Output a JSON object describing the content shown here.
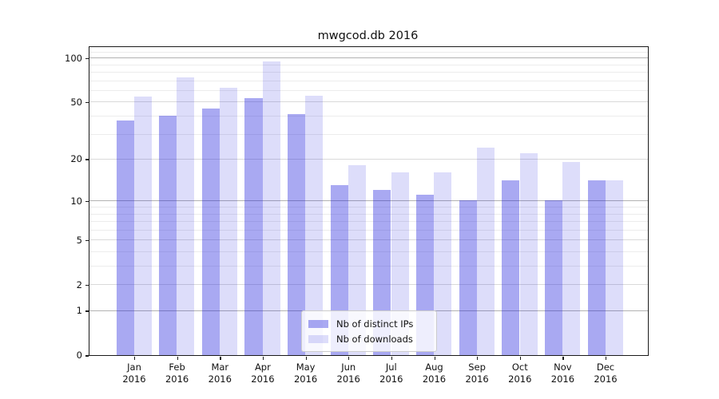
{
  "chart_data": {
    "type": "bar",
    "title": "mwgcod.db 2016",
    "categories": [
      "Jan",
      "Feb",
      "Mar",
      "Apr",
      "May",
      "Jun",
      "Jul",
      "Aug",
      "Sep",
      "Oct",
      "Nov",
      "Dec"
    ],
    "category_year": "2016",
    "series": [
      {
        "name": "Nb of distinct IPs",
        "color": "rgba(28,28,222,0.38)",
        "color_on_white_hex": "#a9a9f3",
        "values": [
          37,
          40,
          45,
          53,
          41,
          13,
          12,
          11,
          10,
          14,
          10,
          14
        ]
      },
      {
        "name": "Nb of downloads",
        "color": "rgba(28,28,222,0.15)",
        "color_on_white_hex": "#dedefa",
        "values": [
          54,
          73,
          62,
          94,
          55,
          18,
          16,
          16,
          24,
          22,
          19,
          14
        ]
      }
    ],
    "xlabel": "",
    "ylabel": "",
    "yscale": "log10(1+x)",
    "y_ticks": [
      0,
      1,
      2,
      5,
      10,
      20,
      50,
      100
    ],
    "y_decade_ticks": [
      1,
      10,
      100
    ],
    "y_minor_gridlines": [
      3,
      4,
      6,
      7,
      8,
      9,
      30,
      40,
      60,
      70,
      80,
      90,
      110
    ],
    "ylim": [
      0,
      118
    ],
    "grid": true,
    "legend_position": "lower center-right, inside axes"
  },
  "colors": {
    "background": "#ffffff",
    "spine": "#1a1a1a",
    "grid_decade": "#b2b2b2",
    "grid_labeled": "#dadada",
    "grid_minor": "#ececec",
    "text": "#111111",
    "legend_border": "#cccccc"
  }
}
